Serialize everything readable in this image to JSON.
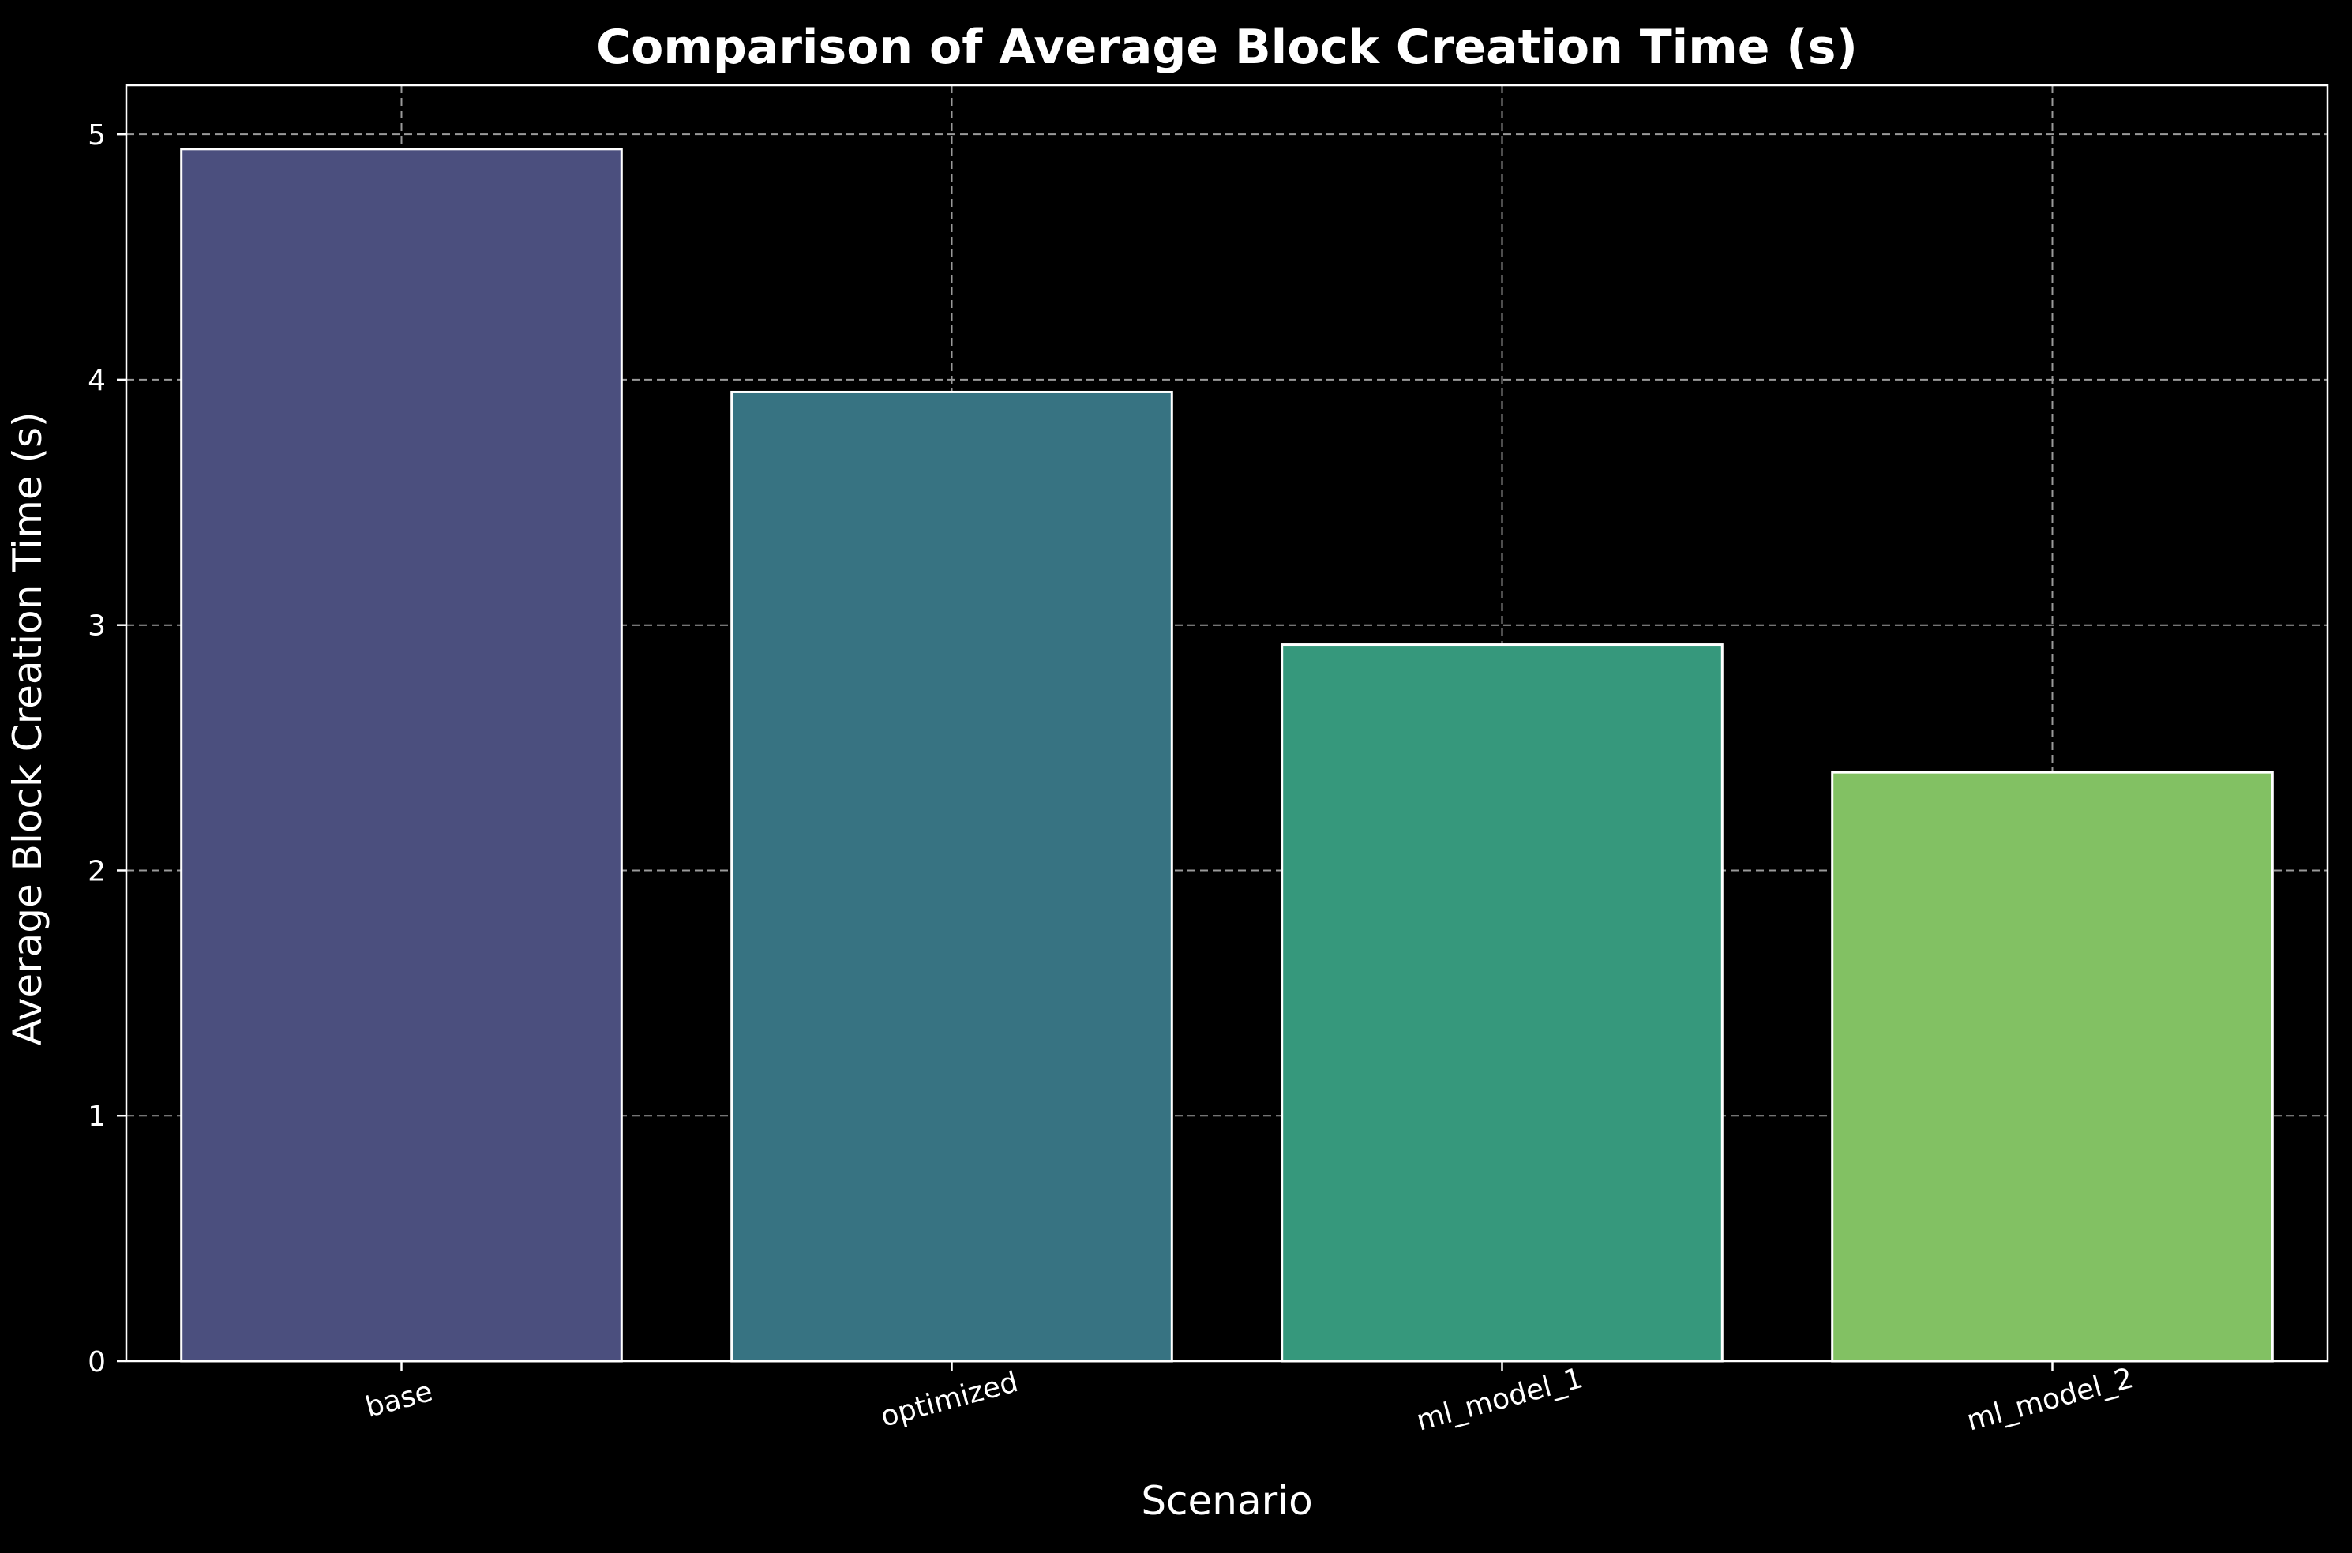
{
  "colors": {
    "background": "#000000",
    "foreground": "#ffffff",
    "grid": "#9a9a9a",
    "bars": [
      "#4b4f7e",
      "#377382",
      "#36987c",
      "#82c163"
    ]
  },
  "chart_data": {
    "type": "bar",
    "title": "Comparison of Average Block Creation Time (s)",
    "xlabel": "Scenario",
    "ylabel": "Average Block Creation Time (s)",
    "categories": [
      "base",
      "optimized",
      "ml_model_1",
      "ml_model_2"
    ],
    "values": [
      4.94,
      3.95,
      2.92,
      2.4
    ],
    "ylim": [
      0,
      5.2
    ],
    "yticks": [
      0,
      1,
      2,
      3,
      4,
      5
    ],
    "grid": true,
    "grid_style": "dashed",
    "xtick_rotation": -15
  }
}
